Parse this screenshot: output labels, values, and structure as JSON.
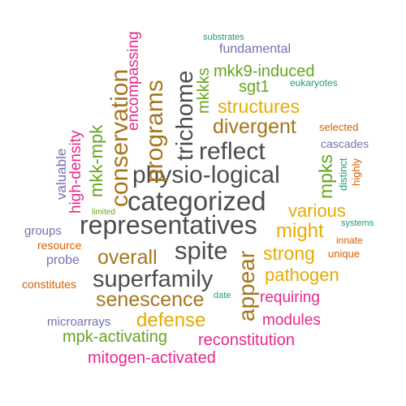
{
  "palette": {
    "gray": "#4d4d4d",
    "brown": "#a6761d",
    "green": "#66a61e",
    "magenta": "#e7298a",
    "orange": "#e6ab02",
    "purple": "#7570b3",
    "teal": "#1b9e77",
    "rust": "#d95f02"
  },
  "words": [
    {
      "text": "substrates",
      "color": "#1b9e77"
    },
    {
      "text": "fundamental",
      "color": "#7570b3"
    },
    {
      "text": "encompassing",
      "color": "#e7298a"
    },
    {
      "text": "conservation",
      "color": "#a6761d"
    },
    {
      "text": "programs",
      "color": "#a6761d"
    },
    {
      "text": "trichome",
      "color": "#4d4d4d"
    },
    {
      "text": "mkk9-induced",
      "color": "#66a61e"
    },
    {
      "text": "eukaryotes",
      "color": "#1b9e77"
    },
    {
      "text": "mkkks",
      "color": "#66a61e"
    },
    {
      "text": "sgt1",
      "color": "#66a61e"
    },
    {
      "text": "structures",
      "color": "#e6ab02"
    },
    {
      "text": "divergent",
      "color": "#a6761d"
    },
    {
      "text": "selected",
      "color": "#d95f02"
    },
    {
      "text": "mkk-mpk",
      "color": "#66a61e"
    },
    {
      "text": "high-density",
      "color": "#e7298a"
    },
    {
      "text": "valuable",
      "color": "#7570b3"
    },
    {
      "text": "reflect",
      "color": "#4d4d4d"
    },
    {
      "text": "cascades",
      "color": "#7570b3"
    },
    {
      "text": "physio-logical",
      "color": "#4d4d4d"
    },
    {
      "text": "mpks",
      "color": "#66a61e"
    },
    {
      "text": "distinct",
      "color": "#1b9e77"
    },
    {
      "text": "highly",
      "color": "#d95f02"
    },
    {
      "text": "categorized",
      "color": "#4d4d4d"
    },
    {
      "text": "limited",
      "color": "#66a61e"
    },
    {
      "text": "various",
      "color": "#e6ab02"
    },
    {
      "text": "systems",
      "color": "#1b9e77"
    },
    {
      "text": "representatives",
      "color": "#4d4d4d"
    },
    {
      "text": "might",
      "color": "#e6ab02"
    },
    {
      "text": "groups",
      "color": "#7570b3"
    },
    {
      "text": "innate",
      "color": "#d95f02"
    },
    {
      "text": "resource",
      "color": "#d95f02"
    },
    {
      "text": "spite",
      "color": "#4d4d4d"
    },
    {
      "text": "strong",
      "color": "#e6ab02"
    },
    {
      "text": "unique",
      "color": "#d95f02"
    },
    {
      "text": "overall",
      "color": "#a6761d"
    },
    {
      "text": "probe",
      "color": "#7570b3"
    },
    {
      "text": "appear",
      "color": "#a6761d"
    },
    {
      "text": "pathogen",
      "color": "#e6ab02"
    },
    {
      "text": "superfamily",
      "color": "#4d4d4d"
    },
    {
      "text": "constitutes",
      "color": "#d95f02"
    },
    {
      "text": "date",
      "color": "#1b9e77"
    },
    {
      "text": "requiring",
      "color": "#e7298a"
    },
    {
      "text": "senescence",
      "color": "#a6761d"
    },
    {
      "text": "defense",
      "color": "#e6ab02"
    },
    {
      "text": "modules",
      "color": "#e7298a"
    },
    {
      "text": "microarrays",
      "color": "#7570b3"
    },
    {
      "text": "mpk-activating",
      "color": "#66a61e"
    },
    {
      "text": "reconstitution",
      "color": "#e7298a"
    },
    {
      "text": "mitogen-activated",
      "color": "#e7298a"
    }
  ]
}
